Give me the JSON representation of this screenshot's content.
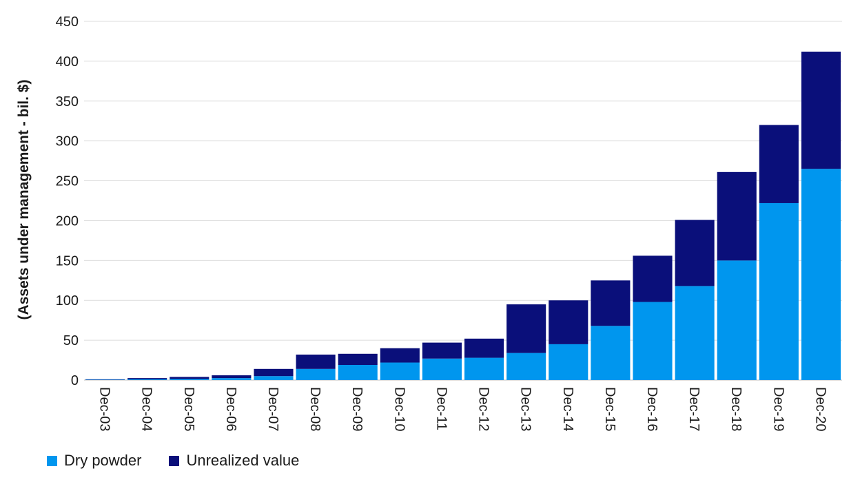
{
  "chart_data": {
    "type": "bar",
    "stacked": true,
    "title": "",
    "xlabel": "",
    "ylabel": "(Assets under management - bil. $)",
    "ylim": [
      0,
      450
    ],
    "yticks": [
      0,
      50,
      100,
      150,
      200,
      250,
      300,
      350,
      400,
      450
    ],
    "grid": true,
    "legend_position": "bottom-left",
    "categories": [
      "Dec-03",
      "Dec-04",
      "Dec-05",
      "Dec-06",
      "Dec-07",
      "Dec-08",
      "Dec-09",
      "Dec-10",
      "Dec-11",
      "Dec-12",
      "Dec-13",
      "Dec-14",
      "Dec-15",
      "Dec-16",
      "Dec-17",
      "Dec-18",
      "Dec-19",
      "Dec-20"
    ],
    "series": [
      {
        "name": "Dry powder",
        "color": "#0096ee",
        "values": [
          0.5,
          1,
          1.5,
          2.5,
          5,
          14,
          19,
          22,
          27,
          28,
          34,
          45,
          68,
          98,
          118,
          150,
          222,
          265
        ]
      },
      {
        "name": "Unrealized value",
        "color": "#0a0f7a",
        "values": [
          0.5,
          1.5,
          2.5,
          3.5,
          9,
          18,
          14,
          18,
          20,
          24,
          61,
          55,
          57,
          58,
          83,
          111,
          98,
          147
        ]
      }
    ]
  }
}
